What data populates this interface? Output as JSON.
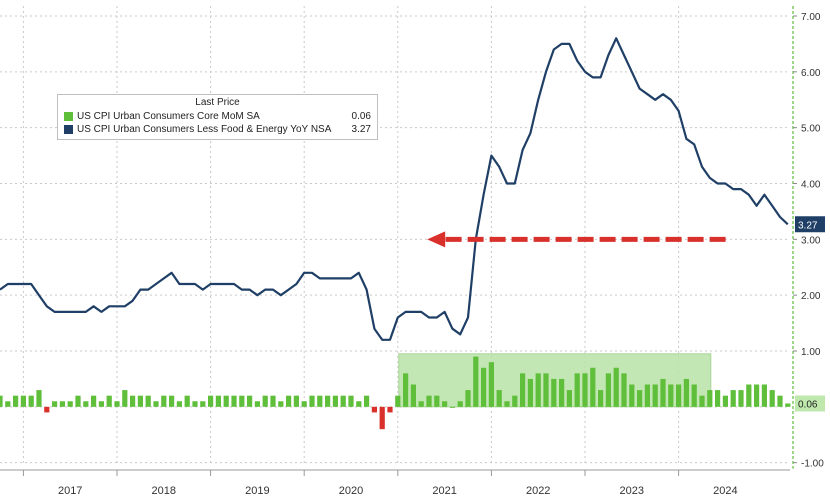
{
  "chart_data": {
    "type": "line",
    "legend": {
      "header": "Last Price",
      "placement": "top-left",
      "entries": [
        {
          "name": "US CPI Urban Consumers Core MoM SA",
          "value": "0.06",
          "color": "#5fbf3a"
        },
        {
          "name": "US CPI Urban Consumers Less Food & Energy YoY NSA",
          "value": "3.27",
          "color": "#1f3f66"
        }
      ]
    },
    "x_tick_labels": [
      "2017",
      "2018",
      "2019",
      "2020",
      "2021",
      "2022",
      "2023",
      "2024"
    ],
    "y_tick_labels": [
      "7.00",
      "6.00",
      "5.00",
      "4.00",
      "3.00",
      "2.00",
      "1.00",
      "-1.00"
    ],
    "ylim": [
      -1.0,
      7.0
    ],
    "grid": true,
    "y_axis_side": "right",
    "last_value_labels": {
      "yoy": "3.27",
      "mom": "0.06"
    },
    "annotations": [
      {
        "type": "dashed-arrow",
        "color": "#d9302c",
        "y": 3.0,
        "x_from": "2024-06",
        "x_to": "2021-04"
      },
      {
        "type": "shaded-box",
        "color": "#b9e3a8",
        "y_range": [
          0.0,
          0.95
        ],
        "x_range": [
          "2021-01",
          "2024-05"
        ]
      }
    ],
    "series": [
      {
        "name": "US CPI Urban Consumers Less Food & Energy YoY NSA",
        "kind": "line",
        "color": "#1f3f66",
        "x_start": "2016-10",
        "values": [
          2.1,
          2.2,
          2.2,
          2.2,
          2.2,
          2.0,
          1.8,
          1.7,
          1.7,
          1.7,
          1.7,
          1.7,
          1.8,
          1.7,
          1.8,
          1.8,
          1.8,
          1.9,
          2.1,
          2.1,
          2.2,
          2.3,
          2.4,
          2.2,
          2.2,
          2.2,
          2.1,
          2.2,
          2.2,
          2.2,
          2.2,
          2.1,
          2.1,
          2.0,
          2.1,
          2.1,
          2.0,
          2.1,
          2.2,
          2.4,
          2.4,
          2.3,
          2.3,
          2.3,
          2.3,
          2.3,
          2.4,
          2.1,
          1.4,
          1.2,
          1.2,
          1.6,
          1.7,
          1.7,
          1.7,
          1.6,
          1.6,
          1.7,
          1.4,
          1.3,
          1.6,
          3.0,
          3.8,
          4.5,
          4.3,
          4.0,
          4.0,
          4.6,
          4.9,
          5.5,
          6.0,
          6.4,
          6.5,
          6.5,
          6.2,
          6.0,
          5.9,
          5.9,
          6.3,
          6.6,
          6.3,
          6.0,
          5.7,
          5.6,
          5.5,
          5.6,
          5.5,
          5.3,
          4.8,
          4.7,
          4.3,
          4.1,
          4.0,
          4.0,
          3.9,
          3.9,
          3.8,
          3.6,
          3.8,
          3.6,
          3.4,
          3.27
        ]
      },
      {
        "name": "US CPI Urban Consumers Core MoM SA",
        "kind": "bar",
        "color": "#5fbf3a",
        "negative_color": "#d9302c",
        "x_start": "2016-10",
        "values": [
          0.2,
          0.1,
          0.2,
          0.2,
          0.2,
          0.3,
          -0.1,
          0.1,
          0.1,
          0.1,
          0.2,
          0.1,
          0.2,
          0.1,
          0.2,
          0.1,
          0.3,
          0.2,
          0.2,
          0.2,
          0.1,
          0.2,
          0.2,
          0.1,
          0.2,
          0.1,
          0.1,
          0.2,
          0.2,
          0.2,
          0.2,
          0.2,
          0.2,
          0.1,
          0.2,
          0.2,
          0.1,
          0.2,
          0.2,
          0.1,
          0.2,
          0.2,
          0.2,
          0.2,
          0.2,
          0.2,
          0.1,
          0.2,
          -0.1,
          -0.4,
          -0.1,
          0.2,
          0.6,
          0.4,
          0.1,
          0.2,
          0.2,
          0.1,
          0.0,
          0.1,
          0.3,
          0.9,
          0.7,
          0.8,
          0.3,
          0.1,
          0.2,
          0.6,
          0.5,
          0.6,
          0.6,
          0.5,
          0.5,
          0.3,
          0.6,
          0.6,
          0.7,
          0.3,
          0.6,
          0.7,
          0.6,
          0.4,
          0.3,
          0.4,
          0.4,
          0.5,
          0.4,
          0.4,
          0.5,
          0.4,
          0.2,
          0.3,
          0.3,
          0.2,
          0.3,
          0.3,
          0.4,
          0.4,
          0.4,
          0.3,
          0.2,
          0.06
        ]
      }
    ]
  }
}
